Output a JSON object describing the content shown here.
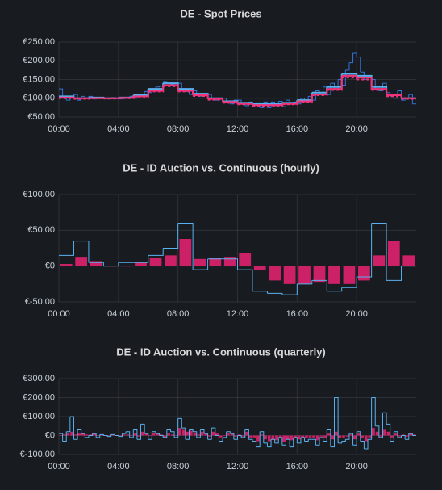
{
  "chart_data": [
    {
      "type": "line",
      "title": "DE - Spot Prices",
      "grid": true,
      "xlim": [
        0,
        24
      ],
      "xticks": [
        {
          "value": 0,
          "label": "00:00"
        },
        {
          "value": 4,
          "label": "04:00"
        },
        {
          "value": 8,
          "label": "08:00"
        },
        {
          "value": 12,
          "label": "12:00"
        },
        {
          "value": 16,
          "label": "16:00"
        },
        {
          "value": 20,
          "label": "20:00"
        }
      ],
      "ylim": [
        50,
        250
      ],
      "yticks": [
        {
          "value": 50,
          "label": "€50.00"
        },
        {
          "value": 100,
          "label": "€100.00"
        },
        {
          "value": 150,
          "label": "€150.00"
        },
        {
          "value": 200,
          "label": "€200.00"
        },
        {
          "value": 250,
          "label": "€250.00"
        }
      ],
      "series": [
        {
          "type": "step",
          "color": "#3274d9",
          "width": 1,
          "x": [
            0,
            0.25,
            0.5,
            0.75,
            1,
            1.25,
            1.5,
            1.75,
            2,
            2.25,
            2.5,
            2.75,
            3,
            3.25,
            3.5,
            3.75,
            4,
            4.25,
            4.5,
            4.75,
            5,
            5.25,
            5.5,
            5.75,
            6,
            6.25,
            6.5,
            6.75,
            7,
            7.25,
            7.5,
            7.75,
            8,
            8.25,
            8.5,
            8.75,
            9,
            9.25,
            9.5,
            9.75,
            10,
            10.25,
            10.5,
            10.75,
            11,
            11.25,
            11.5,
            11.75,
            12,
            12.25,
            12.5,
            12.75,
            13,
            13.25,
            13.5,
            13.75,
            14,
            14.25,
            14.5,
            14.75,
            15,
            15.25,
            15.5,
            15.75,
            16,
            16.25,
            16.5,
            16.75,
            17,
            17.25,
            17.5,
            17.75,
            18,
            18.25,
            18.5,
            18.75,
            19,
            19.25,
            19.5,
            19.75,
            20,
            20.25,
            20.5,
            20.75,
            21,
            21.25,
            21.5,
            21.75,
            22,
            22.25,
            22.5,
            22.75,
            23,
            23.25,
            23.5,
            23.75
          ],
          "values": [
            125,
            100,
            95,
            105,
            110,
            95,
            105,
            100,
            105,
            98,
            100,
            102,
            100,
            98,
            102,
            100,
            98,
            102,
            100,
            105,
            100,
            105,
            110,
            118,
            115,
            125,
            130,
            132,
            145,
            140,
            138,
            135,
            140,
            125,
            118,
            110,
            120,
            110,
            105,
            112,
            110,
            100,
            95,
            100,
            100,
            90,
            85,
            95,
            95,
            85,
            80,
            90,
            80,
            88,
            75,
            90,
            75,
            90,
            80,
            92,
            78,
            95,
            85,
            90,
            85,
            100,
            95,
            105,
            95,
            120,
            110,
            130,
            110,
            140,
            125,
            150,
            135,
            175,
            195,
            220,
            210,
            170,
            150,
            160,
            150,
            125,
            120,
            140,
            115,
            105,
            100,
            120,
            95,
            100,
            110,
            85
          ]
        },
        {
          "type": "step",
          "color": "#5ab1ef",
          "width": 2,
          "x": [
            0,
            1,
            2,
            3,
            4,
            5,
            6,
            7,
            8,
            9,
            10,
            11,
            12,
            13,
            14,
            15,
            16,
            17,
            18,
            19,
            20,
            21,
            22,
            23
          ],
          "values": [
            105,
            100,
            102,
            100,
            102,
            108,
            125,
            140,
            125,
            112,
            100,
            92,
            88,
            85,
            85,
            88,
            95,
            115,
            130,
            165,
            160,
            130,
            110,
            100
          ]
        },
        {
          "type": "step",
          "color": "#f2337a",
          "width": 2,
          "x": [
            0,
            1,
            2,
            3,
            4,
            5,
            6,
            7,
            8,
            9,
            10,
            11,
            12,
            13,
            14,
            15,
            16,
            17,
            18,
            19,
            20,
            21,
            22,
            23
          ],
          "values": [
            102,
            100,
            100,
            100,
            101,
            105,
            120,
            135,
            120,
            108,
            98,
            90,
            85,
            82,
            82,
            85,
            92,
            110,
            125,
            160,
            155,
            125,
            108,
            100
          ]
        },
        {
          "type": "step",
          "color": "#f2337a",
          "width": 2,
          "dash": true,
          "x": [
            0,
            1,
            2,
            3,
            4,
            5,
            6,
            7,
            8,
            9,
            10,
            11,
            12,
            13,
            14,
            15,
            16,
            17,
            18,
            19,
            20,
            21,
            22,
            23
          ],
          "values": [
            100,
            98,
            100,
            99,
            100,
            104,
            118,
            132,
            118,
            106,
            96,
            88,
            84,
            80,
            80,
            84,
            90,
            108,
            122,
            155,
            150,
            122,
            105,
            98
          ]
        }
      ]
    },
    {
      "type": "bar",
      "title": "DE - ID Auction vs. Continuous (hourly)",
      "grid": true,
      "xlim": [
        0,
        24
      ],
      "xticks": [
        {
          "value": 0,
          "label": "00:00"
        },
        {
          "value": 4,
          "label": "04:00"
        },
        {
          "value": 8,
          "label": "08:00"
        },
        {
          "value": 12,
          "label": "12:00"
        },
        {
          "value": 16,
          "label": "16:00"
        },
        {
          "value": 20,
          "label": "20:00"
        }
      ],
      "ylim": [
        -50,
        100
      ],
      "yticks": [
        {
          "value": -50,
          "label": "€-50.00"
        },
        {
          "value": 0,
          "label": "€0"
        },
        {
          "value": 50,
          "label": "€50.00"
        },
        {
          "value": 100,
          "label": "€100.00"
        }
      ],
      "series": [
        {
          "type": "bar",
          "color": "#e0226e",
          "x": [
            0,
            1,
            2,
            3,
            4,
            5,
            6,
            7,
            8,
            9,
            10,
            11,
            12,
            13,
            14,
            15,
            16,
            17,
            18,
            19,
            20,
            21,
            22,
            23
          ],
          "values": [
            3,
            13,
            7,
            0,
            0,
            5,
            12,
            15,
            38,
            10,
            12,
            13,
            18,
            -5,
            -20,
            -25,
            -25,
            -22,
            -25,
            -25,
            -20,
            15,
            35,
            15
          ]
        },
        {
          "type": "step",
          "color": "#5ab1ef",
          "width": 1,
          "x": [
            0,
            1,
            2,
            3,
            4,
            5,
            6,
            7,
            8,
            9,
            10,
            11,
            12,
            13,
            14,
            15,
            16,
            17,
            18,
            19,
            20,
            21,
            22,
            23
          ],
          "values": [
            15,
            35,
            5,
            0,
            5,
            5,
            15,
            25,
            60,
            -5,
            10,
            10,
            -5,
            -35,
            -38,
            -40,
            -25,
            -20,
            -35,
            -30,
            -15,
            60,
            -20,
            0
          ]
        }
      ]
    },
    {
      "type": "bar",
      "title": "DE - ID Auction vs. Continuous (quarterly)",
      "grid": true,
      "xlim": [
        0,
        24
      ],
      "xticks": [
        {
          "value": 0,
          "label": "00:00"
        },
        {
          "value": 4,
          "label": "04:00"
        },
        {
          "value": 8,
          "label": "08:00"
        },
        {
          "value": 12,
          "label": "12:00"
        },
        {
          "value": 16,
          "label": "16:00"
        },
        {
          "value": 20,
          "label": "20:00"
        }
      ],
      "ylim": [
        -100,
        300
      ],
      "yticks": [
        {
          "value": -100,
          "label": "€-100.00"
        },
        {
          "value": 0,
          "label": "€0"
        },
        {
          "value": 100,
          "label": "€100.00"
        },
        {
          "value": 200,
          "label": "€200.00"
        },
        {
          "value": 300,
          "label": "€300.00"
        }
      ],
      "series": [
        {
          "type": "bar",
          "color": "#e0226e",
          "x": [
            0,
            0.25,
            0.5,
            0.75,
            1,
            1.25,
            1.5,
            1.75,
            2,
            2.25,
            2.5,
            2.75,
            3,
            3.25,
            3.5,
            3.75,
            4,
            4.25,
            4.5,
            4.75,
            5,
            5.25,
            5.5,
            5.75,
            6,
            6.25,
            6.5,
            6.75,
            7,
            7.25,
            7.5,
            7.75,
            8,
            8.25,
            8.5,
            8.75,
            9,
            9.25,
            9.5,
            9.75,
            10,
            10.25,
            10.5,
            10.75,
            11,
            11.25,
            11.5,
            11.75,
            12,
            12.25,
            12.5,
            12.75,
            13,
            13.25,
            13.5,
            13.75,
            14,
            14.25,
            14.5,
            14.75,
            15,
            15.25,
            15.5,
            15.75,
            16,
            16.25,
            16.5,
            16.75,
            17,
            17.25,
            17.5,
            17.75,
            18,
            18.25,
            18.5,
            18.75,
            19,
            19.25,
            19.5,
            19.75,
            20,
            20.25,
            20.5,
            20.75,
            21,
            21.25,
            21.5,
            21.75,
            22,
            22.25,
            22.5,
            22.75,
            23,
            23.25,
            23.5,
            23.75
          ],
          "values": [
            0,
            5,
            10,
            20,
            5,
            10,
            15,
            5,
            5,
            10,
            0,
            5,
            0,
            0,
            5,
            0,
            0,
            5,
            5,
            0,
            10,
            -5,
            20,
            10,
            0,
            15,
            10,
            5,
            -10,
            10,
            5,
            0,
            40,
            30,
            20,
            25,
            15,
            5,
            20,
            10,
            -5,
            20,
            10,
            -10,
            0,
            10,
            15,
            -5,
            5,
            -5,
            20,
            -10,
            -10,
            -30,
            5,
            -20,
            -30,
            -20,
            -25,
            -15,
            -35,
            -20,
            -25,
            -15,
            -20,
            -10,
            -15,
            -10,
            -10,
            -25,
            -5,
            -15,
            10,
            -20,
            20,
            -15,
            -10,
            -5,
            5,
            -20,
            10,
            -15,
            -30,
            -10,
            40,
            20,
            -5,
            30,
            20,
            -10,
            10,
            -5,
            5,
            -5,
            15,
            5
          ]
        },
        {
          "type": "step",
          "color": "#5ab1ef",
          "width": 1,
          "x": [
            0,
            0.25,
            0.5,
            0.75,
            1,
            1.25,
            1.5,
            1.75,
            2,
            2.25,
            2.5,
            2.75,
            3,
            3.25,
            3.5,
            3.75,
            4,
            4.25,
            4.5,
            4.75,
            5,
            5.25,
            5.5,
            5.75,
            6,
            6.25,
            6.5,
            6.75,
            7,
            7.25,
            7.5,
            7.75,
            8,
            8.25,
            8.5,
            8.75,
            9,
            9.25,
            9.5,
            9.75,
            10,
            10.25,
            10.5,
            10.75,
            11,
            11.25,
            11.5,
            11.75,
            12,
            12.25,
            12.5,
            12.75,
            13,
            13.25,
            13.5,
            13.75,
            14,
            14.25,
            14.5,
            14.75,
            15,
            15.25,
            15.5,
            15.75,
            16,
            16.25,
            16.5,
            16.75,
            17,
            17.25,
            17.5,
            17.75,
            18,
            18.25,
            18.5,
            18.75,
            19,
            19.25,
            19.5,
            19.75,
            20,
            20.25,
            20.5,
            20.75,
            21,
            21.25,
            21.5,
            21.75,
            22,
            22.25,
            22.5,
            22.75,
            23,
            23.25,
            23.5,
            23.75
          ],
          "values": [
            10,
            -30,
            20,
            100,
            -20,
            30,
            10,
            -10,
            0,
            10,
            -10,
            5,
            0,
            -5,
            5,
            0,
            -5,
            10,
            20,
            -10,
            30,
            -20,
            60,
            10,
            -20,
            20,
            10,
            0,
            -10,
            30,
            20,
            -10,
            90,
            40,
            -20,
            30,
            20,
            -10,
            30,
            10,
            -20,
            40,
            0,
            -30,
            -10,
            20,
            10,
            -20,
            0,
            -10,
            30,
            -20,
            -30,
            -60,
            20,
            -40,
            -60,
            -20,
            -40,
            -10,
            -50,
            -20,
            -60,
            -10,
            -40,
            -10,
            -30,
            -20,
            -20,
            -50,
            -10,
            -30,
            30,
            -60,
            200,
            -40,
            -30,
            -20,
            10,
            -50,
            20,
            -30,
            -70,
            -20,
            200,
            50,
            -10,
            120,
            60,
            -30,
            20,
            -10,
            0,
            -20,
            10,
            0
          ]
        }
      ]
    }
  ]
}
